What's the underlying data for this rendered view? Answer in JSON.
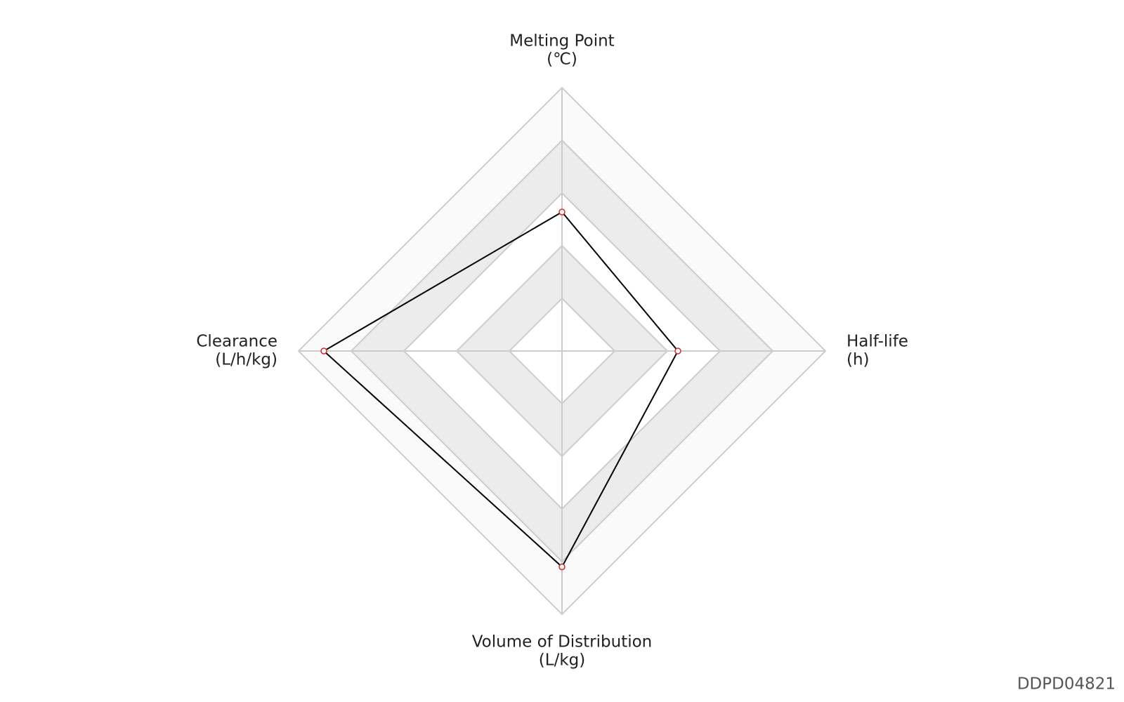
{
  "chart_data": {
    "type": "radar",
    "categories": [
      [
        "Melting Point",
        "(℃)"
      ],
      [
        "Half-life",
        "(h)"
      ],
      [
        "Volume of Distribution",
        "(L/kg)"
      ],
      [
        "Clearance",
        "(L/h/kg)"
      ]
    ],
    "values": [
      2.64,
      2.2,
      4.1,
      4.52
    ],
    "color": "#000000",
    "marker_color": "#d62728",
    "ylim": [
      0,
      5
    ],
    "yticks": [
      1,
      2,
      3,
      4,
      5
    ],
    "grid": true
  },
  "id": "DDPD04821"
}
